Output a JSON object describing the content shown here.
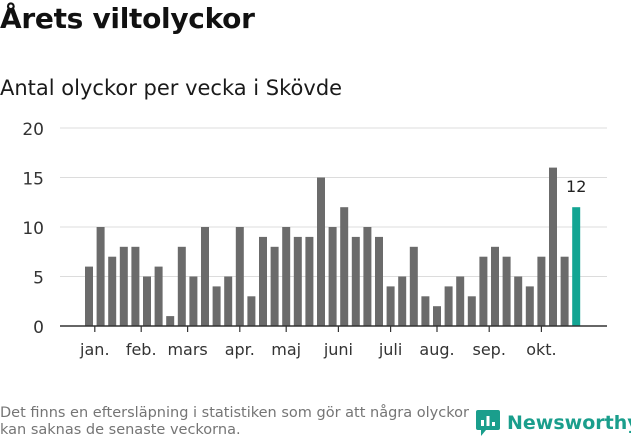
{
  "header": {
    "title": "Årets viltolyckor",
    "subtitle": "Antal olyckor per vecka i Skövde"
  },
  "footer": {
    "note": "Det finns en eftersläpning i statistiken som gör att några olyckor kan saknas de senaste veckorna.",
    "brand": "Newsworthy"
  },
  "colors": {
    "bar": "#6b6b6b",
    "highlight": "#13a593",
    "grid": "#dcdcdc",
    "text": "#333333"
  },
  "chart_data": {
    "type": "bar",
    "x": [
      1,
      2,
      3,
      4,
      5,
      6,
      7,
      8,
      9,
      10,
      11,
      12,
      13,
      14,
      15,
      16,
      17,
      18,
      19,
      20,
      21,
      22,
      23,
      24,
      25,
      26,
      27,
      28,
      29,
      30,
      31,
      32,
      33,
      34,
      35,
      36,
      37,
      38,
      39,
      40,
      41,
      42,
      43
    ],
    "values": [
      6,
      10,
      7,
      8,
      8,
      5,
      6,
      1,
      8,
      5,
      10,
      4,
      5,
      10,
      3,
      9,
      8,
      10,
      9,
      9,
      15,
      10,
      12,
      9,
      10,
      9,
      4,
      5,
      8,
      3,
      2,
      4,
      5,
      3,
      7,
      8,
      7,
      5,
      4,
      7,
      16,
      7,
      12
    ],
    "ylim": [
      0,
      20
    ],
    "yticks": [
      0,
      5,
      10,
      15,
      20
    ],
    "month_labels": [
      {
        "label": "jan.",
        "x": 1.5
      },
      {
        "label": "feb.",
        "x": 5.5
      },
      {
        "label": "mars",
        "x": 9.5
      },
      {
        "label": "apr.",
        "x": 14
      },
      {
        "label": "maj",
        "x": 18
      },
      {
        "label": "juni",
        "x": 22.5
      },
      {
        "label": "juli",
        "x": 27
      },
      {
        "label": "aug.",
        "x": 31
      },
      {
        "label": "sep.",
        "x": 35.5
      },
      {
        "label": "okt.",
        "x": 40
      }
    ],
    "highlight_index": 42,
    "annotation": {
      "text": "12",
      "index": 42
    },
    "grid": true,
    "legend": "none"
  }
}
